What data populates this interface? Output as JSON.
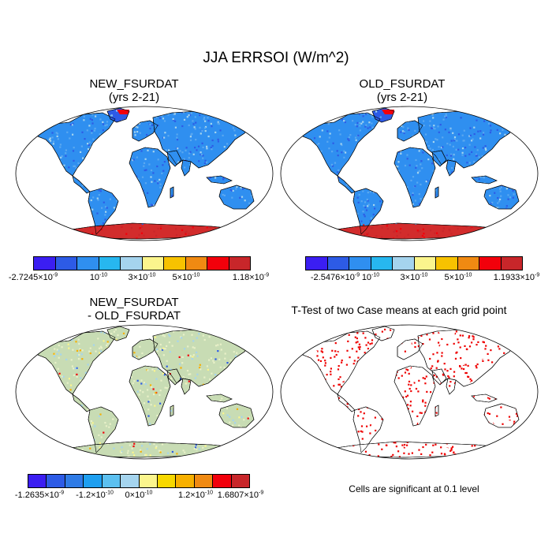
{
  "figure": {
    "title": "JJA ERRSOI (W/m^2)"
  },
  "panels": [
    {
      "id": "new",
      "title_line1": "NEW_FSURDAT",
      "title_line2": "(yrs 2-21)",
      "fill": "field"
    },
    {
      "id": "old",
      "title_line1": "OLD_FSURDAT",
      "title_line2": "(yrs 2-21)",
      "fill": "field"
    },
    {
      "id": "diff",
      "title_line1": "NEW_FSURDAT",
      "title_line2": "- OLD_FSURDAT",
      "fill": "diff"
    },
    {
      "id": "ttest",
      "title_line1": "T-Test of two Case means at each grid point",
      "title_line2": "",
      "fill": "ttest",
      "note": "Cells are significant at 0.1 level"
    }
  ],
  "colorbars": [
    {
      "panel": "new",
      "colors": [
        "#3b1ef2",
        "#2d5be6",
        "#2f8ff0",
        "#27b7ef",
        "#a5d4ee",
        "#fbf58d",
        "#f7c200",
        "#f08a12",
        "#f2000b",
        "#c8262a"
      ],
      "labels": [
        "-2.7245×10",
        "10",
        "3×10",
        "5×10",
        "1.18×10"
      ],
      "exponents": [
        "-9",
        "-10",
        "-10",
        "-10",
        "-9"
      ]
    },
    {
      "panel": "old",
      "colors": [
        "#3b1ef2",
        "#2d5be6",
        "#2f8ff0",
        "#27b7ef",
        "#a5d4ee",
        "#fbf58d",
        "#f7c200",
        "#f08a12",
        "#f2000b",
        "#c8262a"
      ],
      "labels": [
        "-2.5476×10",
        "10",
        "3×10",
        "5×10",
        "1.1933×10"
      ],
      "exponents": [
        "-9",
        "-10",
        "-10",
        "-10",
        "-9"
      ]
    },
    {
      "panel": "diff",
      "colors": [
        "#3b1ef2",
        "#2d5be6",
        "#2f7be6",
        "#1e9ff0",
        "#5cc0f0",
        "#a5d4ee",
        "#fbf58d",
        "#f7d800",
        "#f7b000",
        "#f08a12",
        "#f2000b",
        "#c8262a"
      ],
      "labels": [
        "-1.2635×10",
        "-1.2×10",
        "0×10",
        "1.2×10",
        "1.6807×10"
      ],
      "exponents": [
        "-9",
        "-10",
        "-10",
        "-10",
        "-9"
      ]
    }
  ],
  "map_colors": {
    "ocean": "#ffffff",
    "land_field": "#2f8ff0",
    "land_field_light": "#5aa8f0",
    "land_field_dark": "#2d5be6",
    "antarctica_field": "#d22c2c",
    "greenland": "#f2000b",
    "land_diff": "#c8dcb4",
    "land_diff_light": "#e8f0c8",
    "ttest": "#ee0000",
    "coast": "#000000"
  }
}
